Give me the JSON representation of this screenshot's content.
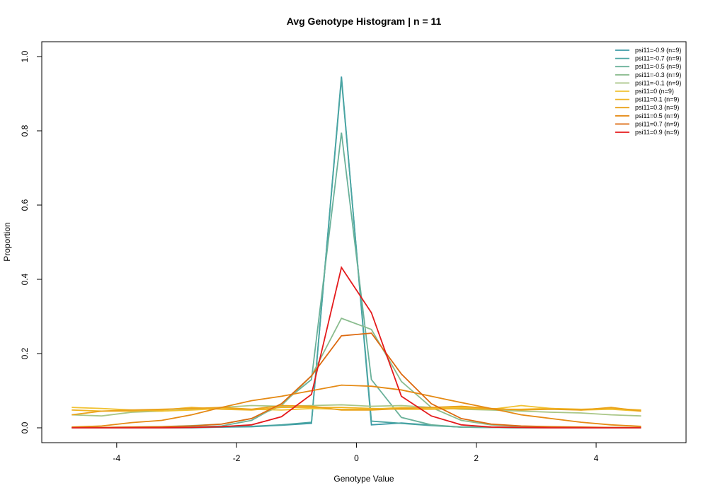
{
  "chart_data": {
    "type": "line",
    "title": "Avg Genotype Histogram | n = 11",
    "xlabel": "Genotype Value",
    "ylabel": "Proportion",
    "xlim": [
      -5.25,
      5.5
    ],
    "ylim": [
      -0.04,
      1.04
    ],
    "xticks": [
      -4,
      -2,
      0,
      2,
      4
    ],
    "xtick_labels": [
      "-4",
      "-2",
      "0",
      "2",
      "4"
    ],
    "yticks": [
      0.0,
      0.2,
      0.4,
      0.6,
      0.8,
      1.0
    ],
    "ytick_labels": [
      "0.0",
      "0.2",
      "0.4",
      "0.6",
      "0.8",
      "1.0"
    ],
    "grid": false,
    "legend_position": "top-right",
    "x": [
      -4.75,
      -4.25,
      -3.75,
      -3.25,
      -2.75,
      -2.25,
      -1.75,
      -1.25,
      -0.75,
      -0.25,
      0.25,
      0.75,
      1.25,
      1.75,
      2.25,
      2.75,
      3.25,
      3.75,
      4.25,
      4.75
    ],
    "series": [
      {
        "name": "psi11=-0.9 (n=9)",
        "color": "#3b9aa6",
        "values": [
          0.0,
          0.0,
          0.0,
          0.0,
          0.0,
          0.002,
          0.003,
          0.007,
          0.012,
          0.946,
          0.008,
          0.013,
          0.007,
          0.002,
          0.001,
          0.0,
          0.0,
          0.0,
          0.0,
          0.0
        ]
      },
      {
        "name": "psi11=-0.7 (n=9)",
        "color": "#4aa5a2",
        "values": [
          0.0,
          0.0,
          0.0,
          0.0,
          0.001,
          0.002,
          0.004,
          0.008,
          0.015,
          0.94,
          0.018,
          0.012,
          0.006,
          0.002,
          0.001,
          0.0,
          0.0,
          0.0,
          0.0,
          0.0
        ]
      },
      {
        "name": "psi11=-0.5 (n=9)",
        "color": "#6ab19a",
        "values": [
          0.0,
          0.0,
          0.0,
          0.0,
          0.002,
          0.005,
          0.02,
          0.065,
          0.13,
          0.795,
          0.13,
          0.028,
          0.008,
          0.002,
          0.001,
          0.0,
          0.0,
          0.0,
          0.0,
          0.0
        ]
      },
      {
        "name": "psi11=-0.3 (n=9)",
        "color": "#8abc8e",
        "values": [
          0.001,
          0.001,
          0.002,
          0.003,
          0.006,
          0.01,
          0.025,
          0.06,
          0.14,
          0.295,
          0.265,
          0.125,
          0.055,
          0.02,
          0.008,
          0.003,
          0.002,
          0.001,
          0.001,
          0.001
        ]
      },
      {
        "name": "psi11=-0.1 (n=9)",
        "color": "#a9c687",
        "values": [
          0.035,
          0.032,
          0.042,
          0.045,
          0.05,
          0.055,
          0.06,
          0.058,
          0.06,
          0.062,
          0.058,
          0.06,
          0.055,
          0.05,
          0.048,
          0.045,
          0.042,
          0.04,
          0.035,
          0.032
        ]
      },
      {
        "name": "psi11=0 (n=9)",
        "color": "#f1c232",
        "values": [
          0.055,
          0.052,
          0.048,
          0.045,
          0.048,
          0.052,
          0.05,
          0.048,
          0.052,
          0.05,
          0.05,
          0.055,
          0.052,
          0.055,
          0.05,
          0.06,
          0.052,
          0.048,
          0.05,
          0.045
        ]
      },
      {
        "name": "psi11=0.1 (n=9)",
        "color": "#f0b323",
        "values": [
          0.048,
          0.045,
          0.045,
          0.048,
          0.055,
          0.05,
          0.048,
          0.055,
          0.055,
          0.055,
          0.052,
          0.05,
          0.05,
          0.052,
          0.05,
          0.05,
          0.052,
          0.05,
          0.052,
          0.048
        ]
      },
      {
        "name": "psi11=0.3 (n=9)",
        "color": "#eaa21a",
        "values": [
          0.035,
          0.045,
          0.048,
          0.05,
          0.052,
          0.055,
          0.05,
          0.06,
          0.058,
          0.048,
          0.048,
          0.052,
          0.055,
          0.058,
          0.052,
          0.048,
          0.05,
          0.048,
          0.055,
          0.045
        ]
      },
      {
        "name": "psi11=0.5 (n=9)",
        "color": "#e58a14",
        "values": [
          0.002,
          0.005,
          0.014,
          0.02,
          0.035,
          0.055,
          0.073,
          0.085,
          0.1,
          0.115,
          0.112,
          0.102,
          0.085,
          0.068,
          0.052,
          0.035,
          0.025,
          0.015,
          0.008,
          0.004
        ]
      },
      {
        "name": "psi11=0.7 (n=9)",
        "color": "#dd6a10",
        "values": [
          0.001,
          0.001,
          0.002,
          0.003,
          0.005,
          0.01,
          0.025,
          0.065,
          0.14,
          0.248,
          0.255,
          0.145,
          0.065,
          0.025,
          0.01,
          0.005,
          0.003,
          0.002,
          0.001,
          0.001
        ]
      },
      {
        "name": "psi11=0.9 (n=9)",
        "color": "#e41a1c",
        "values": [
          0.0,
          0.0,
          0.0,
          0.0,
          0.001,
          0.003,
          0.008,
          0.03,
          0.09,
          0.432,
          0.31,
          0.085,
          0.032,
          0.008,
          0.002,
          0.001,
          0.0,
          0.0,
          0.0,
          0.0
        ]
      }
    ]
  }
}
